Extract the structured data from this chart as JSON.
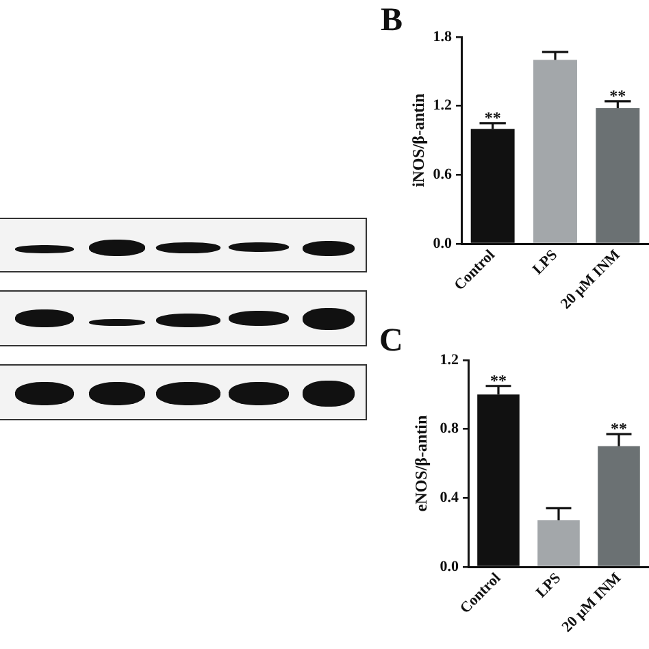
{
  "chart_data": [
    {
      "type": "bar",
      "title": "B",
      "categories": [
        "Control",
        "LPS",
        "20 μM INM"
      ],
      "values": [
        1.0,
        1.6,
        1.18
      ],
      "colors": [
        "#111111",
        "#a3a7aa",
        "#6b7173"
      ],
      "errors": [
        [
          1.0,
          1.05
        ],
        [
          1.6,
          1.67
        ],
        [
          1.18,
          1.24
        ]
      ],
      "ylabel": "iNOS/β-antin",
      "ylim": [
        0,
        1.8
      ],
      "yticks": [
        {
          "value": 0,
          "label": "0.0"
        },
        {
          "value": 0.6,
          "label": "0.6"
        },
        {
          "value": 1.2,
          "label": "1.2"
        },
        {
          "value": 1.8,
          "label": "1.8"
        }
      ],
      "annotations": [
        {
          "text": "**",
          "x": "Control",
          "y": 1.05
        },
        {
          "text": "**",
          "x": "20 μM INM",
          "y": 1.24
        }
      ]
    },
    {
      "type": "bar",
      "title": "C",
      "categories": [
        "Control",
        "LPS",
        "20 μM INM"
      ],
      "values": [
        1.0,
        0.27,
        0.7
      ],
      "colors": [
        "#111111",
        "#a3a7aa",
        "#6b7173"
      ],
      "errors": [
        [
          1.0,
          1.05
        ],
        [
          0.27,
          0.34
        ],
        [
          0.7,
          0.77
        ]
      ],
      "ylabel": "eNOS/β-antin",
      "ylim": [
        0,
        1.2
      ],
      "yticks": [
        {
          "value": 0,
          "label": "0.0"
        },
        {
          "value": 0.4,
          "label": "0.4"
        },
        {
          "value": 0.8,
          "label": "0.8"
        },
        {
          "value": 1.2,
          "label": "1.2"
        }
      ],
      "annotations": [
        {
          "text": "**",
          "x": "Control",
          "y": 1.05
        },
        {
          "text": "**",
          "x": "20 μM INM",
          "y": 0.77
        }
      ]
    }
  ]
}
